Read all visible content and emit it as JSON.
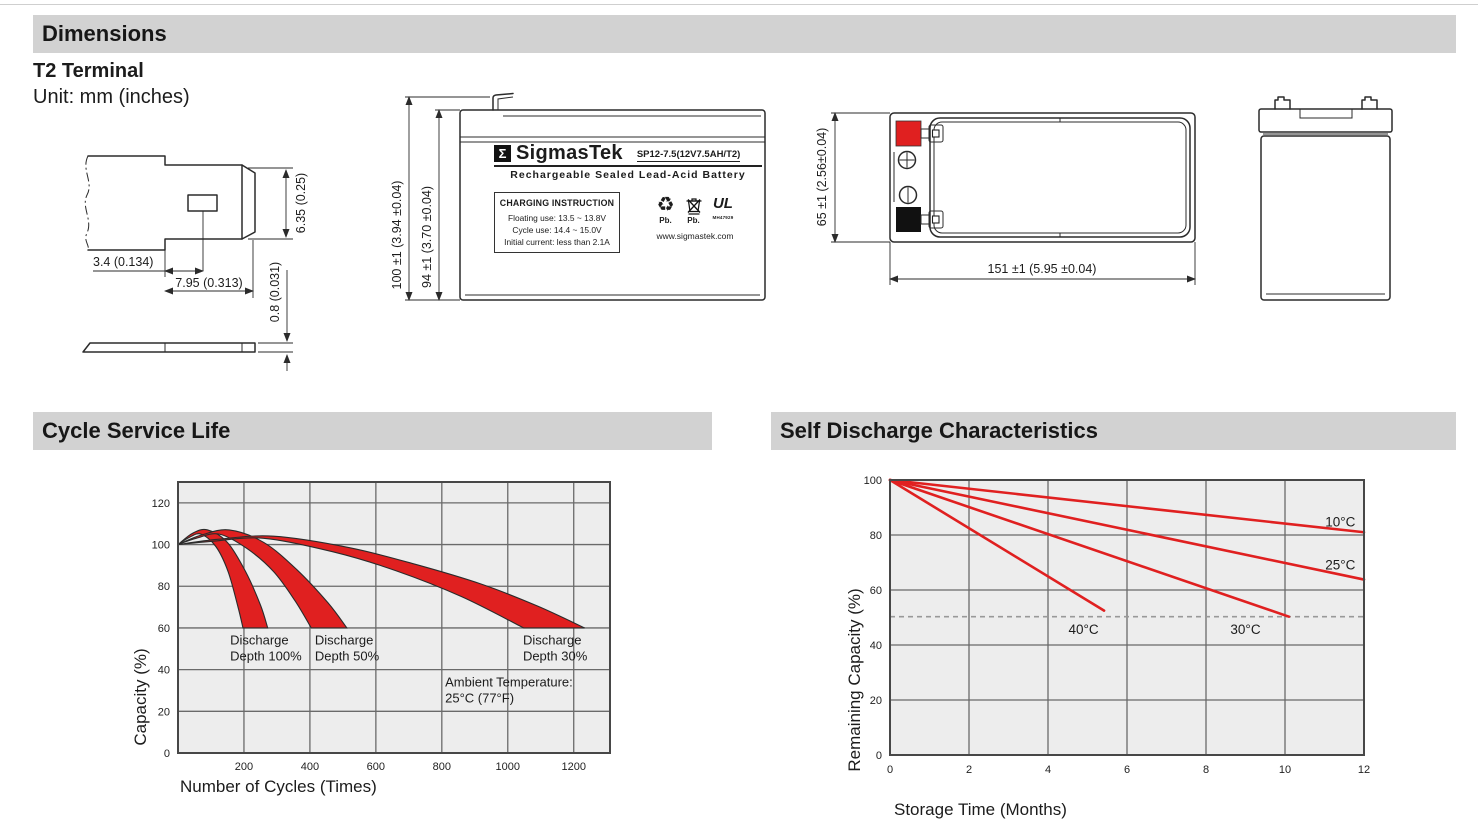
{
  "colors": {
    "red": "#e02020",
    "plot_bg": "#ededed",
    "grid": "#6a6a6a",
    "border": "#474747",
    "dashed": "#999999",
    "header_bg": "#d2d2d2",
    "terminal_black": "#111111"
  },
  "page": {
    "sections": {
      "dimensions": {
        "title": "Dimensions"
      },
      "cycle": {
        "title": "Cycle Service Life"
      },
      "self_discharge": {
        "title": "Self Discharge Characteristics"
      }
    },
    "terminal": {
      "heading": "T2 Terminal",
      "unit": "Unit: mm (inches)",
      "dims": {
        "tip_height": "6.35 (0.25)",
        "slot_offset": "3.4 (0.134)",
        "tip_length": "7.95 (0.313)",
        "thickness": "0.8 (0.031)"
      }
    },
    "front_view": {
      "dim_outer": "100 ±1 (3.94 ±0.04)",
      "dim_inner": "94 ±1 (3.70 ±0.04)",
      "label": {
        "brand_sigma": "Σ",
        "brand": "SigmasTek",
        "model": "SP12-7.5(12V7.5AH/T2)",
        "subtitle": "Rechargeable Sealed Lead-Acid Battery",
        "charging": {
          "title": "CHARGING INSTRUCTION",
          "lines": [
            "Floating use: 13.5 ~ 13.8V",
            "Cycle use: 14.4 ~ 15.0V",
            "Initial current: less than 2.1A"
          ]
        },
        "pb1": "Pb.",
        "pb2": "Pb.",
        "ul_mark": "UL",
        "ul_code": "MH47929",
        "website": "www.sigmastek.com"
      }
    },
    "top_view": {
      "dim_height": "65 ±1 (2.56±0.04)",
      "dim_width": "151 ±1 (5.95 ±0.04)"
    }
  },
  "chart_data": [
    {
      "type": "area",
      "title": "Cycle Service Life",
      "xlabel": "Number of Cycles (Times)",
      "ylabel": "Capacity (%)",
      "xlim": [
        0,
        1310
      ],
      "ylim": [
        0,
        130
      ],
      "xticks": [
        200,
        400,
        600,
        800,
        1000,
        1200
      ],
      "yticks": [
        0,
        20,
        40,
        60,
        80,
        100,
        120
      ],
      "grid": true,
      "legend_position": "none",
      "bands": [
        {
          "name": "Discharge Depth 100%",
          "upper": [
            [
              0,
              100
            ],
            [
              45,
              105.5
            ],
            [
              90,
              107
            ],
            [
              150,
              101
            ],
            [
              205,
              87
            ],
            [
              250,
              71
            ],
            [
              272,
              60
            ]
          ],
          "lower": [
            [
              0,
              100
            ],
            [
              35,
              103.5
            ],
            [
              70,
              105
            ],
            [
              115,
              99
            ],
            [
              152,
              87
            ],
            [
              182,
              70
            ],
            [
              197,
              60
            ]
          ]
        },
        {
          "name": "Discharge Depth 50%",
          "upper": [
            [
              0,
              100
            ],
            [
              70,
              104.5
            ],
            [
              155,
              107
            ],
            [
              260,
              101
            ],
            [
              360,
              88
            ],
            [
              455,
              72
            ],
            [
              512,
              60
            ]
          ],
          "lower": [
            [
              0,
              100
            ],
            [
              55,
              103
            ],
            [
              125,
              105
            ],
            [
              210,
              98
            ],
            [
              290,
              87
            ],
            [
              355,
              73
            ],
            [
              404,
              60
            ]
          ]
        },
        {
          "name": "Discharge Depth 30%",
          "upper": [
            [
              0,
              100
            ],
            [
              120,
              102.5
            ],
            [
              290,
              104
            ],
            [
              520,
              98.5
            ],
            [
              720,
              90.5
            ],
            [
              920,
              81
            ],
            [
              1090,
              70.5
            ],
            [
              1233,
              60
            ]
          ],
          "lower": [
            [
              0,
              100
            ],
            [
              100,
              101.5
            ],
            [
              260,
              103
            ],
            [
              470,
              96.5
            ],
            [
              660,
              87.5
            ],
            [
              860,
              75
            ],
            [
              1048,
              60
            ]
          ]
        }
      ],
      "annotations": [
        {
          "lines": [
            "Discharge",
            "Depth 100%"
          ],
          "x": 158,
          "y": 52
        },
        {
          "lines": [
            "Discharge",
            "Depth 50%"
          ],
          "x": 415,
          "y": 52
        },
        {
          "lines": [
            "Discharge",
            "Depth 30%"
          ],
          "x": 1046,
          "y": 52
        },
        {
          "lines": [
            "Ambient Temperature:",
            "25°C (77°F)"
          ],
          "x": 810,
          "y": 32
        }
      ]
    },
    {
      "type": "line",
      "title": "Self Discharge Characteristics",
      "xlabel": "Storage Time (Months)",
      "ylabel": "Remaining Capacity (%)",
      "xlim": [
        0,
        12
      ],
      "ylim": [
        0,
        100
      ],
      "xticks": [
        0,
        2,
        4,
        6,
        8,
        10,
        12
      ],
      "yticks": [
        0,
        20,
        40,
        60,
        80,
        100
      ],
      "grid": true,
      "legend_position": "inline-labels",
      "series": [
        {
          "name": "10°C",
          "points": [
            [
              0,
              100
            ],
            [
              12,
              81
            ]
          ],
          "label_pos": [
            11.4,
            84.5
          ]
        },
        {
          "name": "25°C",
          "points": [
            [
              0,
              100
            ],
            [
              12,
              63.8
            ]
          ],
          "label_pos": [
            11.4,
            69
          ]
        },
        {
          "name": "30°C",
          "points": [
            [
              0,
              100
            ],
            [
              10.1,
              50.3
            ]
          ],
          "label_pos": [
            9.0,
            45.5
          ]
        },
        {
          "name": "40°C",
          "points": [
            [
              0,
              100
            ],
            [
              5.42,
              52.5
            ]
          ],
          "label_pos": [
            4.9,
            45.5
          ]
        }
      ],
      "dashed_line_y": 50.3
    }
  ]
}
